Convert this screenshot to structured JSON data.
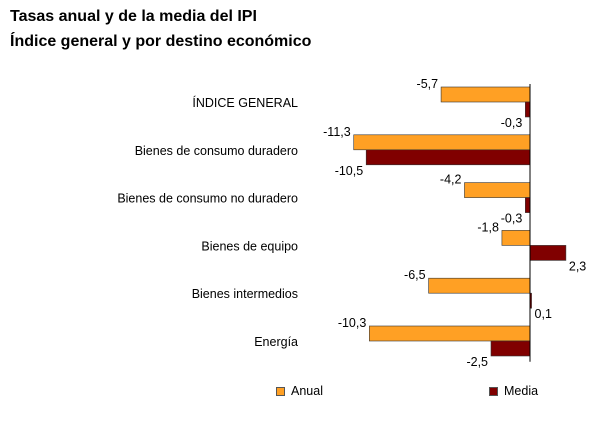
{
  "chart_data": {
    "type": "bar",
    "orientation": "horizontal",
    "title": "Tasas anual y de la media del IPI",
    "subtitle": "Índice general y por destino económico",
    "categories": [
      "ÍNDICE GENERAL",
      "Bienes de consumo duradero",
      "Bienes de consumo no duradero",
      "Bienes de equipo",
      "Bienes intermedios",
      "Energía"
    ],
    "series": [
      {
        "name": "Anual",
        "color": "#FFA024",
        "values": [
          -5.7,
          -11.3,
          -4.2,
          -1.8,
          -6.5,
          -10.3
        ],
        "labels": [
          "-5,7",
          "-11,3",
          "-4,2",
          "-1,8",
          "-6,5",
          "-10,3"
        ]
      },
      {
        "name": "Media",
        "color": "#800000",
        "values": [
          -0.3,
          -10.5,
          -0.3,
          2.3,
          0.1,
          -2.5
        ],
        "labels": [
          "-0,3",
          "-10,5",
          "-0,3",
          "2,3",
          "0,1",
          "-2,5"
        ]
      }
    ],
    "xlim": [
      -11.3,
      2.3
    ],
    "legend_position": "bottom",
    "grid": false
  }
}
